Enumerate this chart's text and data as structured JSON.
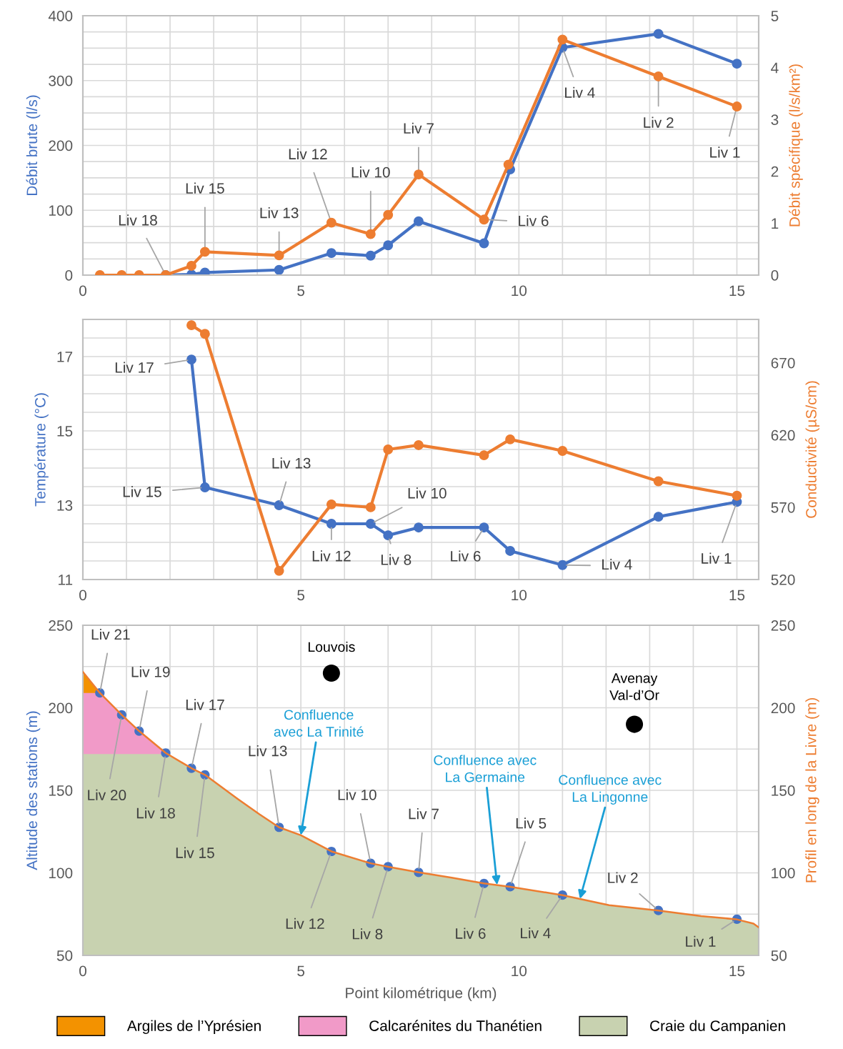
{
  "chart_data": [
    {
      "type": "line",
      "ylabel": "Débit brute (l/s)",
      "y2label": "Débit spécifique (l/s/km²)",
      "xlim": [
        0,
        15.5
      ],
      "ylim": [
        0,
        400
      ],
      "y2lim": [
        0,
        5
      ],
      "grid": true,
      "marker": "circle",
      "line_style": "solid",
      "xticks": [
        0,
        {
          "value": 1,
          "label": null
        },
        {
          "value": 2,
          "label": null
        },
        {
          "value": 3,
          "label": null
        },
        {
          "value": 4,
          "label": null
        },
        5,
        {
          "value": 6,
          "label": null
        },
        {
          "value": 7,
          "label": null
        },
        {
          "value": 8,
          "label": null
        },
        {
          "value": 9,
          "label": null
        },
        10,
        {
          "value": 11,
          "label": null
        },
        {
          "value": 12,
          "label": null
        },
        {
          "value": 13,
          "label": null
        },
        {
          "value": 14,
          "label": null
        },
        15
      ],
      "yticks": [
        0,
        {
          "value": 25,
          "label": null
        },
        {
          "value": 50,
          "label": null
        },
        {
          "value": 75,
          "label": null
        },
        100,
        {
          "value": 125,
          "label": null
        },
        {
          "value": 150,
          "label": null
        },
        {
          "value": 175,
          "label": null
        },
        200,
        {
          "value": 225,
          "label": null
        },
        {
          "value": 250,
          "label": null
        },
        {
          "value": 275,
          "label": null
        },
        300,
        {
          "value": 325,
          "label": null
        },
        {
          "value": 350,
          "label": null
        },
        {
          "value": 375,
          "label": null
        },
        400
      ],
      "y2ticks": [
        0,
        1,
        2,
        3,
        4,
        5
      ],
      "series": [
        {
          "color": "#4472c4",
          "x": [
            1.9,
            2.49,
            2.8,
            4.5,
            5.7,
            6.6,
            7.0,
            7.7,
            9.2,
            9.8,
            11.0,
            13.2,
            15.0
          ],
          "values": [
            0,
            1,
            4,
            8,
            34,
            30,
            46,
            83,
            49,
            163,
            351,
            372,
            326
          ]
        },
        {
          "color": "#ed7d31",
          "axis": "y2",
          "x": [
            0.39,
            0.89,
            1.29,
            1.9,
            2.49,
            2.8,
            4.5,
            5.7,
            6.6,
            7.0,
            7.7,
            9.2,
            9.76,
            11.0,
            13.2,
            15.0
          ],
          "values": [
            0,
            0,
            0,
            0,
            0.18,
            0.45,
            0.38,
            1.01,
            0.79,
            1.16,
            1.94,
            1.07,
            2.13,
            4.54,
            3.83,
            3.25
          ]
        }
      ],
      "annotations": [
        {
          "text": "Liv 18",
          "x": 1.9,
          "y": 0
        },
        {
          "text": "Liv 15",
          "x": 2.8,
          "y": 36
        },
        {
          "text": "Liv 13",
          "x": 4.5,
          "y": 30
        },
        {
          "text": "Liv 12",
          "x": 5.7,
          "y": 81
        },
        {
          "text": "Liv 10",
          "x": 6.6,
          "y": 63
        },
        {
          "text": "Liv 7",
          "x": 7.7,
          "y": 155
        },
        {
          "text": "Liv 6",
          "x": 9.2,
          "y": 86
        },
        {
          "text": "Liv 4",
          "x": 11.0,
          "y": 351
        },
        {
          "text": "Liv 2",
          "x": 13.2,
          "y": 306
        },
        {
          "text": "Liv 1",
          "x": 15.0,
          "y": 260
        }
      ]
    },
    {
      "type": "line",
      "ylabel": "Température (°C)",
      "y2label": "Conductivité (µS/cm)",
      "xlim": [
        0,
        15.5
      ],
      "ylim": [
        11,
        18
      ],
      "y2lim": [
        520,
        700
      ],
      "grid": true,
      "marker": "circle",
      "line_style": "solid",
      "xticks": [
        0,
        {
          "value": 1,
          "label": null
        },
        {
          "value": 2,
          "label": null
        },
        {
          "value": 3,
          "label": null
        },
        {
          "value": 4,
          "label": null
        },
        5,
        {
          "value": 6,
          "label": null
        },
        {
          "value": 7,
          "label": null
        },
        {
          "value": 8,
          "label": null
        },
        {
          "value": 9,
          "label": null
        },
        10,
        {
          "value": 11,
          "label": null
        },
        {
          "value": 12,
          "label": null
        },
        {
          "value": 13,
          "label": null
        },
        {
          "value": 14,
          "label": null
        },
        15
      ],
      "yticks": [
        11,
        {
          "value": 11.5,
          "label": null
        },
        {
          "value": 12,
          "label": null
        },
        {
          "value": 12.5,
          "label": null
        },
        13,
        {
          "value": 13.5,
          "label": null
        },
        {
          "value": 14,
          "label": null
        },
        {
          "value": 14.5,
          "label": null
        },
        15,
        {
          "value": 15.5,
          "label": null
        },
        {
          "value": 16,
          "label": null
        },
        {
          "value": 16.5,
          "label": null
        },
        17,
        {
          "value": 17.5,
          "label": null
        }
      ],
      "y2ticks": [
        520,
        570,
        620,
        670
      ],
      "series": [
        {
          "color": "#4472c4",
          "x": [
            2.49,
            2.8,
            4.5,
            5.7,
            6.6,
            7.0,
            7.7,
            9.2,
            9.8,
            11.0,
            13.2,
            15.0
          ],
          "values": [
            16.92,
            13.48,
            13.0,
            12.5,
            12.5,
            12.19,
            12.4,
            12.4,
            11.77,
            11.39,
            12.69,
            13.09
          ]
        },
        {
          "color": "#ed7d31",
          "axis": "y2",
          "x": [
            2.49,
            2.8,
            4.5,
            5.7,
            6.6,
            7.0,
            7.7,
            9.2,
            9.8,
            11.0,
            13.2,
            15.0
          ],
          "values": [
            696,
            690,
            526,
            572,
            570,
            610,
            613,
            606,
            617,
            609,
            588,
            578
          ]
        }
      ],
      "annotations": [
        {
          "text": "Liv 17",
          "x": 2.49,
          "y": 16.92
        },
        {
          "text": "Liv 15",
          "x": 2.8,
          "y": 13.48
        },
        {
          "text": "Liv 13",
          "x": 4.5,
          "y": 13.0
        },
        {
          "text": "Liv 12",
          "x": 5.7,
          "y": 12.5
        },
        {
          "text": "Liv 10",
          "x": 6.6,
          "y": 12.5
        },
        {
          "text": "Liv 8",
          "x": 7.0,
          "y": 12.19
        },
        {
          "text": "Liv 6",
          "x": 9.2,
          "y": 12.4
        },
        {
          "text": "Liv 4",
          "x": 11.0,
          "y": 11.39
        },
        {
          "text": "Liv 1",
          "x": 15.0,
          "y": 13.09
        }
      ]
    },
    {
      "type": "area",
      "xlabel": "Point kilométrique (km)",
      "ylabel": "Altitude des stations (m)",
      "y2label": "Profil en long de la Livre (m)",
      "xlim": [
        0,
        15.5
      ],
      "ylim": [
        50,
        250
      ],
      "y2lim": [
        50,
        250
      ],
      "grid": true,
      "legend": "bottom",
      "xticks": [
        0,
        {
          "value": 1,
          "label": null
        },
        {
          "value": 2,
          "label": null
        },
        {
          "value": 3,
          "label": null
        },
        {
          "value": 4,
          "label": null
        },
        5,
        {
          "value": 6,
          "label": null
        },
        {
          "value": 7,
          "label": null
        },
        {
          "value": 8,
          "label": null
        },
        {
          "value": 9,
          "label": null
        },
        10,
        {
          "value": 11,
          "label": null
        },
        {
          "value": 12,
          "label": null
        },
        {
          "value": 13,
          "label": null
        },
        {
          "value": 14,
          "label": null
        },
        15
      ],
      "yticks": [
        50,
        {
          "value": 75,
          "label": null
        },
        100,
        {
          "value": 125,
          "label": null
        },
        150,
        {
          "value": 175,
          "label": null
        },
        200,
        {
          "value": 225,
          "label": null
        },
        250
      ],
      "y2ticks": [
        50,
        100,
        150,
        200,
        250
      ],
      "series": [
        {
          "type": "area",
          "name": "Argiles de l’Yprésien",
          "color": "#f39200",
          "x": [
            0,
            0.39
          ],
          "values": [
            221.7,
            209
          ]
        },
        {
          "type": "area",
          "name": "Calcarénites du Thanétien",
          "color": "#f19ac8",
          "x": [
            0,
            0.39,
            0.89,
            1.29,
            1.9
          ],
          "values": [
            209,
            209,
            195.7,
            185.9,
            172.6
          ]
        },
        {
          "type": "area",
          "name": "Craie du Campanien",
          "color": "#c8d2b0",
          "x": [
            0,
            1.9,
            2.49,
            2.8,
            3.55,
            4.05,
            4.5,
            5.0,
            5.7,
            6.6,
            7.0,
            7.7,
            8.46,
            9.2,
            9.8,
            11.0,
            12.07,
            13.2,
            14.18,
            14.98,
            15.38,
            15.5
          ],
          "values": [
            172,
            172,
            163.4,
            159.4,
            144.8,
            135.5,
            127.6,
            122.8,
            113,
            105.8,
            103.7,
            100.3,
            97.1,
            93.6,
            91.6,
            86.5,
            80.4,
            77.2,
            73.8,
            71.9,
            69.3,
            67
          ]
        },
        {
          "type": "line",
          "axis": "y2",
          "color": "#ed7d31",
          "marker": "none",
          "x": [
            0,
            0.39,
            0.89,
            1.29,
            1.9,
            2.49,
            2.8,
            3.55,
            4.05,
            4.5,
            5.0,
            5.7,
            6.6,
            7.0,
            7.7,
            8.46,
            9.2,
            9.8,
            11.0,
            12.07,
            13.2,
            14.18,
            14.98,
            15.38,
            15.5
          ],
          "values": [
            221.7,
            209,
            195.7,
            185.9,
            172.6,
            163.4,
            159.4,
            144.8,
            135.5,
            127.6,
            122.8,
            113,
            105.8,
            103.7,
            100.3,
            97.1,
            93.6,
            91.6,
            86.5,
            80.4,
            77.2,
            73.8,
            71.9,
            69.3,
            67
          ]
        },
        {
          "type": "scatter",
          "color": "#4472c4",
          "marker": "circle",
          "x": [
            0.39,
            0.89,
            1.29,
            1.9,
            2.49,
            2.8,
            4.5,
            5.7,
            6.6,
            7.0,
            7.7,
            9.2,
            9.8,
            11.0,
            13.2,
            15.0
          ],
          "values": [
            209,
            195.7,
            185.9,
            172.6,
            163.4,
            159.4,
            127.6,
            113,
            105.8,
            103.7,
            100.3,
            93.6,
            91.6,
            86.5,
            77.2,
            71.9
          ]
        },
        {
          "type": "scatter",
          "color": "#000000",
          "marker": "circle",
          "x": [
            5.7,
            12.65
          ],
          "values": [
            221,
            190
          ]
        }
      ],
      "annotations": [
        {
          "text": "Liv 21",
          "x": 0.39,
          "y": 209
        },
        {
          "text": "Liv 19",
          "x": 1.29,
          "y": 185.9
        },
        {
          "text": "Liv 20",
          "x": 0.89,
          "y": 195.7
        },
        {
          "text": "Liv 18",
          "x": 1.9,
          "y": 172.6
        },
        {
          "text": "Liv 17",
          "x": 2.49,
          "y": 163.4
        },
        {
          "text": "Liv 15",
          "x": 2.8,
          "y": 159.4
        },
        {
          "text": "Liv 13",
          "x": 4.5,
          "y": 127.6
        },
        {
          "text": "Liv 12",
          "x": 5.7,
          "y": 113
        },
        {
          "text": "Liv 10",
          "x": 6.6,
          "y": 105.8
        },
        {
          "text": "Liv 8",
          "x": 7.0,
          "y": 103.7
        },
        {
          "text": "Liv 7",
          "x": 7.7,
          "y": 100.3
        },
        {
          "text": "Liv 6",
          "x": 9.2,
          "y": 93.6
        },
        {
          "text": "Liv 5",
          "x": 9.8,
          "y": 91.6
        },
        {
          "text": "Liv 4",
          "x": 11.0,
          "y": 86.5
        },
        {
          "text": "Liv 2",
          "x": 13.2,
          "y": 77.2
        },
        {
          "text": "Liv 1",
          "x": 15.0,
          "y": 71.9
        },
        {
          "text": "Louvois",
          "x": 5.7,
          "y": 221
        },
        {
          "text": "Avenay\nVal-d’Or",
          "x": 12.65,
          "y": 190
        },
        {
          "text": "Confluence\navec La Trinité",
          "x": 5.0,
          "y": 122.8
        },
        {
          "text": "Confluence avec\nLa Germaine",
          "x": 9.5,
          "y": 92.7
        },
        {
          "text": "Confluence avec\nLa Lingonne",
          "x": 11.4,
          "y": 84.2
        }
      ]
    }
  ]
}
